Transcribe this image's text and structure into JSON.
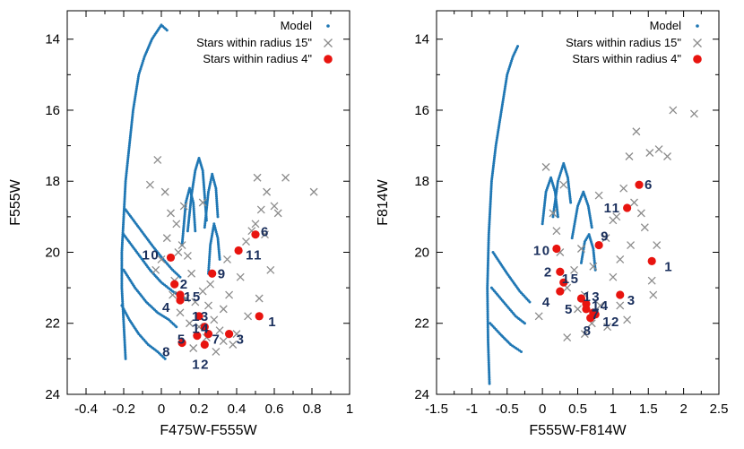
{
  "colors": {
    "model": "#1f77b4",
    "stars15": "#8c8c8c",
    "stars4": "#e8140f",
    "label": "#1a2f5c"
  },
  "chart_data": [
    {
      "type": "scatter",
      "title": "",
      "xlabel": "F475W-F555W",
      "ylabel": "F555W",
      "xlim": [
        -0.5,
        1.0
      ],
      "ylim": [
        24,
        13.2
      ],
      "y_inverted": true,
      "grid": false,
      "legend_position": "top-right",
      "xticks": [
        -0.4,
        -0.2,
        0,
        0.2,
        0.4,
        0.6,
        0.8,
        1
      ],
      "xtick_labels": [
        "-0.4",
        "-0.2",
        "0",
        "0.2",
        "0.4",
        "0.6",
        "0.8",
        "1"
      ],
      "yticks": [
        14,
        16,
        18,
        20,
        22,
        24
      ],
      "ytick_labels": [
        "14",
        "16",
        "18",
        "20",
        "22",
        "24"
      ],
      "legend": [
        "Model",
        "Stars within radius 15\"",
        "Stars within radius 4\""
      ],
      "model_tracks": [
        [
          [
            -0.19,
            23.0
          ],
          [
            -0.2,
            22.0
          ],
          [
            -0.21,
            21.0
          ],
          [
            -0.21,
            20.0
          ],
          [
            -0.2,
            19.0
          ],
          [
            -0.19,
            18.0
          ],
          [
            -0.17,
            17.0
          ],
          [
            -0.15,
            16.0
          ],
          [
            -0.12,
            15.0
          ],
          [
            -0.09,
            14.5
          ],
          [
            -0.05,
            14.0
          ],
          [
            0.0,
            13.6
          ],
          [
            0.03,
            13.75
          ]
        ],
        [
          [
            -0.21,
            21.5
          ],
          [
            -0.17,
            21.9
          ],
          [
            -0.12,
            22.3
          ],
          [
            -0.07,
            22.6
          ],
          [
            -0.02,
            22.8
          ],
          [
            0.02,
            23.0
          ]
        ],
        [
          [
            -0.2,
            20.5
          ],
          [
            -0.14,
            21.0
          ],
          [
            -0.08,
            21.4
          ],
          [
            -0.02,
            21.7
          ],
          [
            0.04,
            21.9
          ],
          [
            0.08,
            22.1
          ]
        ],
        [
          [
            -0.2,
            19.5
          ],
          [
            -0.13,
            20.0
          ],
          [
            -0.06,
            20.5
          ],
          [
            0.0,
            20.85
          ],
          [
            0.06,
            21.1
          ],
          [
            0.12,
            21.3
          ]
        ],
        [
          [
            -0.19,
            18.8
          ],
          [
            -0.12,
            19.3
          ],
          [
            -0.05,
            19.8
          ],
          [
            0.01,
            20.2
          ],
          [
            0.06,
            20.5
          ],
          [
            0.1,
            20.7
          ]
        ],
        [
          [
            0.14,
            19.4
          ],
          [
            0.16,
            18.4
          ],
          [
            0.18,
            17.7
          ],
          [
            0.2,
            17.35
          ],
          [
            0.22,
            17.7
          ],
          [
            0.23,
            18.4
          ],
          [
            0.24,
            19.1
          ]
        ],
        [
          [
            0.11,
            19.8
          ],
          [
            0.13,
            18.6
          ],
          [
            0.15,
            18.2
          ],
          [
            0.17,
            18.6
          ],
          [
            0.18,
            19.4
          ]
        ],
        [
          [
            0.23,
            19.3
          ],
          [
            0.25,
            18.3
          ],
          [
            0.27,
            17.8
          ],
          [
            0.29,
            18.2
          ],
          [
            0.3,
            19.0
          ]
        ],
        [
          [
            0.25,
            20.6
          ],
          [
            0.26,
            19.8
          ],
          [
            0.28,
            19.2
          ],
          [
            0.3,
            19.6
          ],
          [
            0.31,
            20.2
          ]
        ]
      ],
      "stars_15": [
        [
          -0.02,
          17.4
        ],
        [
          -0.06,
          18.1
        ],
        [
          0.02,
          18.3
        ],
        [
          0.05,
          18.9
        ],
        [
          0.08,
          19.2
        ],
        [
          0.03,
          19.6
        ],
        [
          0.11,
          19.8
        ],
        [
          0.0,
          20.2
        ],
        [
          -0.03,
          20.5
        ],
        [
          0.14,
          20.1
        ],
        [
          0.07,
          20.8
        ],
        [
          0.16,
          20.6
        ],
        [
          0.06,
          21.2
        ],
        [
          0.13,
          21.3
        ],
        [
          0.18,
          21.4
        ],
        [
          0.22,
          21.1
        ],
        [
          0.1,
          21.7
        ],
        [
          0.25,
          21.5
        ],
        [
          0.15,
          22.0
        ],
        [
          0.2,
          22.1
        ],
        [
          0.28,
          21.9
        ],
        [
          0.31,
          22.2
        ],
        [
          0.24,
          22.4
        ],
        [
          0.33,
          22.5
        ],
        [
          0.38,
          22.6
        ],
        [
          0.17,
          22.7
        ],
        [
          0.29,
          22.8
        ],
        [
          0.4,
          22.3
        ],
        [
          0.36,
          21.2
        ],
        [
          0.42,
          20.7
        ],
        [
          0.35,
          20.2
        ],
        [
          0.45,
          19.7
        ],
        [
          0.48,
          19.4
        ],
        [
          0.5,
          19.2
        ],
        [
          0.53,
          18.8
        ],
        [
          0.56,
          18.3
        ],
        [
          0.51,
          17.9
        ],
        [
          0.6,
          18.7
        ],
        [
          0.62,
          18.9
        ],
        [
          0.55,
          19.5
        ],
        [
          0.58,
          20.5
        ],
        [
          0.52,
          21.3
        ],
        [
          0.46,
          21.8
        ],
        [
          0.66,
          17.9
        ],
        [
          0.81,
          18.3
        ],
        [
          0.12,
          18.7
        ],
        [
          0.22,
          18.6
        ],
        [
          0.09,
          20.0
        ],
        [
          0.26,
          20.9
        ],
        [
          0.33,
          21.6
        ]
      ],
      "stars_4": [
        {
          "x": 0.52,
          "y": 21.8,
          "label": "1"
        },
        {
          "x": 0.07,
          "y": 20.9,
          "label": "2"
        },
        {
          "x": 0.36,
          "y": 22.3,
          "label": "3"
        },
        {
          "x": 0.1,
          "y": 21.35,
          "label": "4"
        },
        {
          "x": 0.19,
          "y": 22.35,
          "label": "5"
        },
        {
          "x": 0.5,
          "y": 19.5,
          "label": "6"
        },
        {
          "x": 0.25,
          "y": 22.3,
          "label": "7"
        },
        {
          "x": 0.11,
          "y": 22.55,
          "label": "8"
        },
        {
          "x": 0.27,
          "y": 20.6,
          "label": "9"
        },
        {
          "x": 0.05,
          "y": 20.15,
          "label": "10"
        },
        {
          "x": 0.41,
          "y": 19.95,
          "label": "11"
        },
        {
          "x": 0.23,
          "y": 22.6,
          "label": "12"
        },
        {
          "x": 0.2,
          "y": 21.8,
          "label": "13"
        },
        {
          "x": 0.23,
          "y": 22.1,
          "label": "14"
        },
        {
          "x": 0.1,
          "y": 21.2,
          "label": "15"
        }
      ]
    },
    {
      "type": "scatter",
      "title": "",
      "xlabel": "F555W-F814W",
      "ylabel": "F814W",
      "xlim": [
        -1.5,
        2.5
      ],
      "ylim": [
        24,
        13.2
      ],
      "y_inverted": true,
      "grid": false,
      "legend_position": "top-right",
      "xticks": [
        -1.5,
        -1,
        -0.5,
        0,
        0.5,
        1,
        1.5,
        2,
        2.5
      ],
      "xtick_labels": [
        "-1.5",
        "-1",
        "-0.5",
        "0",
        "0.5",
        "1",
        "1.5",
        "2",
        "2.5"
      ],
      "yticks": [
        14,
        16,
        18,
        20,
        22,
        24
      ],
      "ytick_labels": [
        "14",
        "16",
        "18",
        "20",
        "22",
        "24"
      ],
      "legend": [
        "Model",
        "Stars within radius 15\"",
        "Stars within radius 4\""
      ],
      "model_tracks": [
        [
          [
            -0.75,
            23.7
          ],
          [
            -0.77,
            22.5
          ],
          [
            -0.78,
            21.0
          ],
          [
            -0.76,
            19.5
          ],
          [
            -0.72,
            18.0
          ],
          [
            -0.66,
            17.0
          ],
          [
            -0.58,
            16.0
          ],
          [
            -0.5,
            15.0
          ],
          [
            -0.42,
            14.5
          ],
          [
            -0.35,
            14.2
          ]
        ],
        [
          [
            -0.74,
            22.0
          ],
          [
            -0.6,
            22.3
          ],
          [
            -0.45,
            22.6
          ],
          [
            -0.3,
            22.8
          ]
        ],
        [
          [
            -0.72,
            21.0
          ],
          [
            -0.55,
            21.4
          ],
          [
            -0.38,
            21.8
          ],
          [
            -0.25,
            22.0
          ]
        ],
        [
          [
            -0.7,
            20.0
          ],
          [
            -0.5,
            20.6
          ],
          [
            -0.32,
            21.1
          ],
          [
            -0.18,
            21.4
          ]
        ],
        [
          [
            0.0,
            19.2
          ],
          [
            0.05,
            18.3
          ],
          [
            0.12,
            17.9
          ],
          [
            0.18,
            18.3
          ],
          [
            0.22,
            19.0
          ]
        ],
        [
          [
            0.15,
            19.0
          ],
          [
            0.22,
            18.0
          ],
          [
            0.3,
            17.5
          ],
          [
            0.36,
            17.9
          ],
          [
            0.4,
            18.6
          ]
        ],
        [
          [
            0.42,
            19.6
          ],
          [
            0.5,
            18.7
          ],
          [
            0.58,
            18.3
          ],
          [
            0.65,
            18.7
          ],
          [
            0.7,
            19.3
          ]
        ],
        [
          [
            0.55,
            20.3
          ],
          [
            0.6,
            19.7
          ],
          [
            0.66,
            19.5
          ],
          [
            0.72,
            19.9
          ],
          [
            0.75,
            20.5
          ]
        ]
      ],
      "stars_15": [
        [
          1.85,
          16.0
        ],
        [
          2.15,
          16.1
        ],
        [
          1.33,
          16.6
        ],
        [
          1.65,
          17.1
        ],
        [
          1.23,
          17.3
        ],
        [
          1.52,
          17.2
        ],
        [
          1.77,
          17.3
        ],
        [
          0.05,
          17.6
        ],
        [
          0.3,
          18.1
        ],
        [
          1.15,
          18.2
        ],
        [
          1.3,
          18.6
        ],
        [
          0.8,
          18.4
        ],
        [
          1.05,
          19.0
        ],
        [
          1.45,
          19.3
        ],
        [
          0.9,
          19.6
        ],
        [
          1.25,
          19.8
        ],
        [
          0.25,
          20.0
        ],
        [
          0.45,
          20.5
        ],
        [
          0.72,
          20.4
        ],
        [
          1.0,
          20.7
        ],
        [
          0.35,
          21.0
        ],
        [
          0.6,
          21.2
        ],
        [
          0.82,
          21.5
        ],
        [
          1.1,
          21.5
        ],
        [
          0.5,
          21.6
        ],
        [
          0.7,
          22.0
        ],
        [
          0.92,
          22.1
        ],
        [
          1.2,
          21.9
        ],
        [
          0.6,
          22.3
        ],
        [
          0.35,
          22.4
        ],
        [
          1.55,
          20.8
        ],
        [
          1.57,
          21.2
        ],
        [
          1.62,
          19.8
        ],
        [
          1.0,
          19.1
        ],
        [
          0.55,
          19.9
        ],
        [
          0.2,
          19.4
        ],
        [
          0.15,
          18.9
        ],
        [
          1.4,
          18.9
        ],
        [
          -0.05,
          21.8
        ],
        [
          1.1,
          20.2
        ]
      ],
      "stars_4": [
        {
          "x": 1.55,
          "y": 20.25,
          "label": "1"
        },
        {
          "x": 0.25,
          "y": 20.55,
          "label": "2"
        },
        {
          "x": 1.1,
          "y": 21.2,
          "label": "3"
        },
        {
          "x": 0.25,
          "y": 21.1,
          "label": "4"
        },
        {
          "x": 0.62,
          "y": 21.6,
          "label": "5"
        },
        {
          "x": 1.37,
          "y": 18.1,
          "label": "6"
        },
        {
          "x": 0.72,
          "y": 21.7,
          "label": "7"
        },
        {
          "x": 0.68,
          "y": 21.85,
          "label": "8"
        },
        {
          "x": 0.8,
          "y": 19.8,
          "label": "9"
        },
        {
          "x": 0.2,
          "y": 19.9,
          "label": "10"
        },
        {
          "x": 1.2,
          "y": 18.75,
          "label": "11"
        },
        {
          "x": 0.75,
          "y": 21.75,
          "label": "12"
        },
        {
          "x": 0.55,
          "y": 21.3,
          "label": "13"
        },
        {
          "x": 0.62,
          "y": 21.45,
          "label": "14"
        },
        {
          "x": 0.3,
          "y": 20.85,
          "label": "15"
        }
      ]
    }
  ]
}
